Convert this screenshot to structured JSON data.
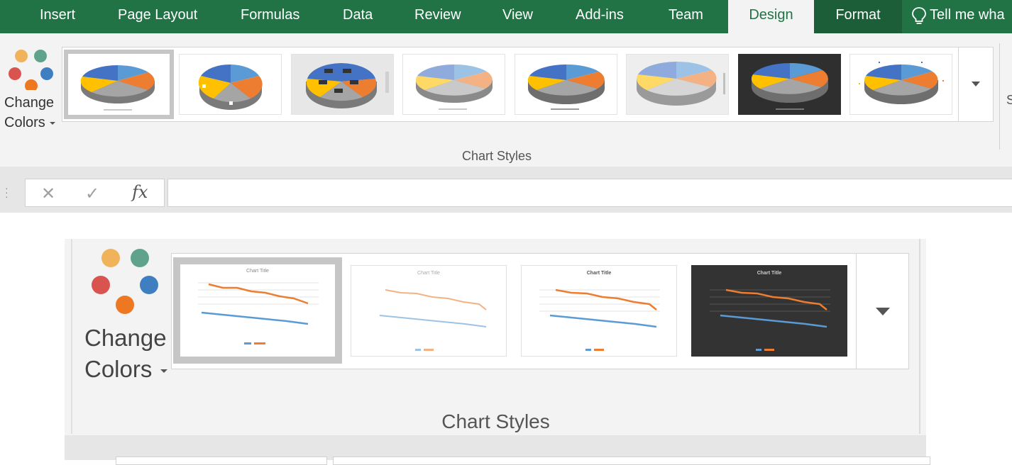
{
  "ribbon": {
    "tabs": [
      {
        "label": "Insert"
      },
      {
        "label": "Page Layout"
      },
      {
        "label": "Formulas"
      },
      {
        "label": "Data"
      },
      {
        "label": "Review"
      },
      {
        "label": "View"
      },
      {
        "label": "Add-ins"
      },
      {
        "label": "Team"
      },
      {
        "label": "Design"
      },
      {
        "label": "Format"
      }
    ],
    "tell_me": "Tell me wha",
    "active_tab": "Design",
    "colors": {
      "tab_bar": "#217346",
      "format_tab": "#1b5e38",
      "ribbon_bg": "#f3f3f3"
    }
  },
  "chart_styles": {
    "change_colors_line1": "Change",
    "change_colors_line2": "Colors",
    "group_label": "Chart Styles",
    "partial_next_group": "S",
    "gallery_icon": "chevron-down-icon",
    "palette_dot_colors": [
      "#f0b35b",
      "#5fa38c",
      "#d9534f",
      "#3f7fc1",
      "#ee7722"
    ],
    "pie_slice_colors": [
      "#4472c4",
      "#ed7d31",
      "#a5a5a5",
      "#ffc000",
      "#5b9bd5"
    ],
    "pie_style_count": 8,
    "selected_style_index": 0
  },
  "formula_bar": {
    "cancel_icon": "cross-icon",
    "enter_icon": "check-icon",
    "fx_label": "fx",
    "value": ""
  },
  "zoomed_view": {
    "change_colors_line1": "Change",
    "change_colors_line2": "Colors",
    "group_label": "Chart Styles",
    "line_styles": [
      {
        "title": "Chart Title"
      },
      {
        "title": "Chart Title"
      },
      {
        "title": "Chart Title"
      },
      {
        "title": "Chart Title"
      }
    ],
    "series_colors": [
      "#ed7d31",
      "#5b9bd5"
    ],
    "selected_style_index": 0
  }
}
